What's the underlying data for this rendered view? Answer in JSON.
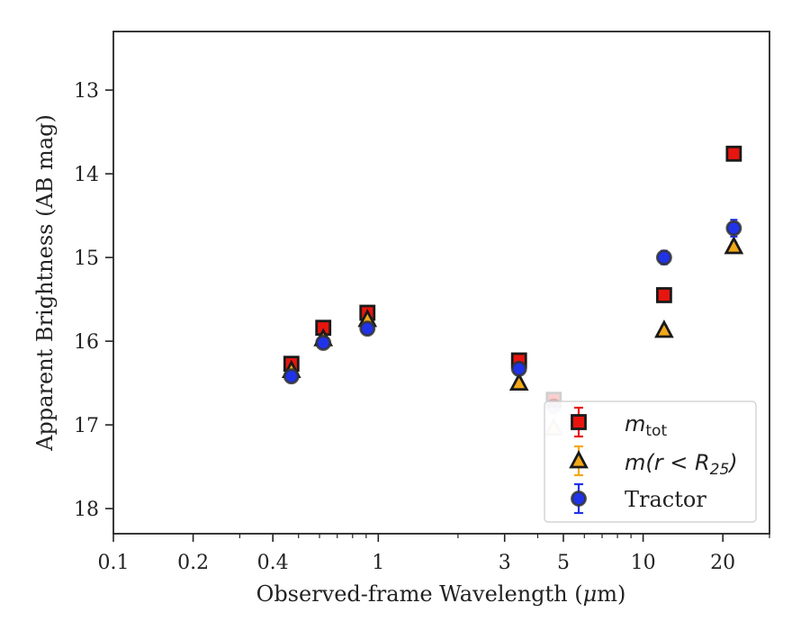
{
  "chart_data": {
    "type": "scatter",
    "title": "",
    "xlabel": "Observed-frame Wavelength (μm)",
    "xlabel_parts": [
      "Observed-frame Wavelength (",
      "μ",
      "m)"
    ],
    "ylabel": "Apparent Brightness (AB mag)",
    "x_scale": "log",
    "xlim": [
      0.1,
      30
    ],
    "ylim": [
      18.3,
      12.3
    ],
    "y_inverted": true,
    "x_ticks": [
      0.1,
      0.2,
      0.4,
      1,
      3,
      5,
      10,
      20
    ],
    "x_tick_labels": [
      "0.1",
      "0.2",
      "0.4",
      "1",
      "3",
      "5",
      "10",
      "20"
    ],
    "y_ticks": [
      13,
      14,
      15,
      16,
      17,
      18
    ],
    "y_tick_labels": [
      "13",
      "14",
      "15",
      "16",
      "17",
      "18"
    ],
    "legend_position": "lower-right",
    "grid": false,
    "series": [
      {
        "name": "m_tot",
        "label_text": "m",
        "label_sub": "tot",
        "marker": "square",
        "color": "#e8150f",
        "edge": "#1a1a1a",
        "errcolor": "#e8150f",
        "points": [
          {
            "x": 0.47,
            "y": 16.27
          },
          {
            "x": 0.62,
            "y": 15.84
          },
          {
            "x": 0.91,
            "y": 15.66
          },
          {
            "x": 3.4,
            "y": 16.23
          },
          {
            "x": 4.6,
            "y": 16.7
          },
          {
            "x": 12.0,
            "y": 15.45
          },
          {
            "x": 22.0,
            "y": 13.76
          }
        ],
        "errors": [
          0.05,
          0.05,
          0.05,
          0.05,
          0.05,
          0.05,
          0.08
        ]
      },
      {
        "name": "m(r < R25)",
        "label_text": "m(r < R",
        "label_sub": "25",
        "label_end": ")",
        "marker": "triangle",
        "color": "#f2a818",
        "edge": "#1a1a1a",
        "errcolor": "#f2a818",
        "points": [
          {
            "x": 0.47,
            "y": 16.35
          },
          {
            "x": 0.62,
            "y": 15.97
          },
          {
            "x": 0.91,
            "y": 15.74
          },
          {
            "x": 3.4,
            "y": 16.5
          },
          {
            "x": 4.6,
            "y": 17.04
          },
          {
            "x": 12.0,
            "y": 15.87
          },
          {
            "x": 22.0,
            "y": 14.87
          }
        ],
        "errors": [
          0.04,
          0.04,
          0.04,
          0.04,
          0.05,
          0.05,
          0.05
        ]
      },
      {
        "name": "Tractor",
        "label_text": "Tractor",
        "marker": "circle",
        "color": "#2133e8",
        "edge": "#333333",
        "errcolor": "#2133e8",
        "points": [
          {
            "x": 0.47,
            "y": 16.42
          },
          {
            "x": 0.62,
            "y": 16.02
          },
          {
            "x": 0.91,
            "y": 15.85
          },
          {
            "x": 3.4,
            "y": 16.33
          },
          {
            "x": 4.6,
            "y": 16.78
          },
          {
            "x": 12.0,
            "y": 15.0
          },
          {
            "x": 22.0,
            "y": 14.65
          }
        ],
        "errors": [
          0.05,
          0.05,
          0.05,
          0.05,
          0.06,
          0.08,
          0.1
        ]
      }
    ]
  }
}
